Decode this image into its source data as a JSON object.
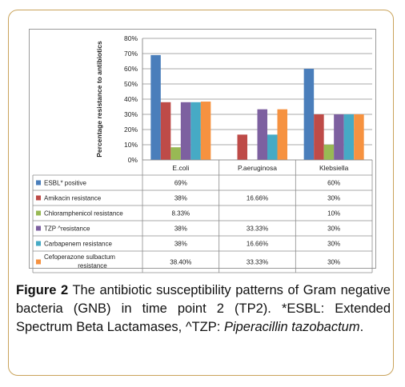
{
  "chart_data": {
    "type": "bar",
    "ylabel": "Percentage resistance to antibiotics",
    "ylim": [
      0,
      80
    ],
    "yticks": [
      "0%",
      "10%",
      "20%",
      "30%",
      "40%",
      "50%",
      "60%",
      "70%",
      "80%"
    ],
    "grid": true,
    "categories": [
      "E.coli",
      "P.aeruginosa",
      "Klebsiella"
    ],
    "series": [
      {
        "name": "ESBL* positive",
        "color": "#4a7ebb",
        "values": [
          69,
          null,
          60
        ],
        "labels": [
          "69%",
          "",
          "60%"
        ]
      },
      {
        "name": "Amikacin resistance",
        "color": "#be4b48",
        "values": [
          38,
          16.66,
          30
        ],
        "labels": [
          "38%",
          "16.66%",
          "30%"
        ]
      },
      {
        "name": "Chloramphenicol resistance",
        "color": "#98b954",
        "values": [
          8.33,
          null,
          10
        ],
        "labels": [
          "8.33%",
          "",
          "10%"
        ]
      },
      {
        "name": "TZP ^resistance",
        "color": "#7d60a0",
        "values": [
          38,
          33.33,
          30
        ],
        "labels": [
          "38%",
          "33.33%",
          "30%"
        ]
      },
      {
        "name": "Carbapenem resistance",
        "color": "#46aac5",
        "values": [
          38,
          16.66,
          30
        ],
        "labels": [
          "38%",
          "16.66%",
          "30%"
        ]
      },
      {
        "name": "Cefoperazone sulbactum resistance",
        "color": "#f69240",
        "values": [
          38.4,
          33.33,
          30
        ],
        "labels": [
          "38.40%",
          "33.33%",
          "30%"
        ]
      }
    ],
    "legend_placement": "data-table-left"
  },
  "caption": {
    "label": "Figure 2",
    "text": " The antibiotic susceptibility patterns of Gram negative bacteria (GNB) in time point 2 (TP2). *ESBL: Extended Spectrum Beta Lactamases, ^TZP: ",
    "italic": "Piperacillin tazobactum",
    "end": "."
  }
}
